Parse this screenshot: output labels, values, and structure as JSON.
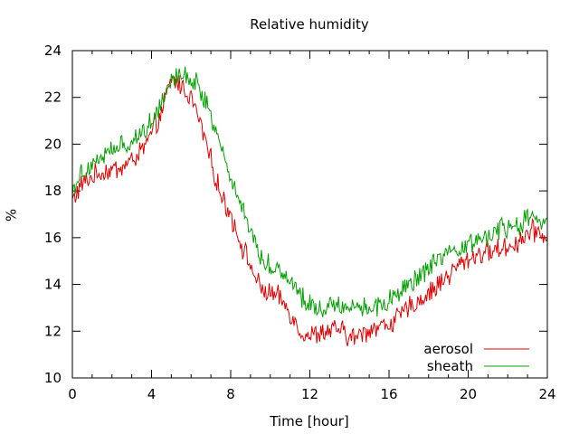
{
  "chart_data": {
    "type": "line",
    "title": "Relative humidity",
    "xlabel": "Time [hour]",
    "ylabel": "%",
    "xlim": [
      0,
      24
    ],
    "ylim": [
      10,
      24
    ],
    "x_ticks": [
      "0",
      "4",
      "8",
      "12",
      "16",
      "20",
      "24"
    ],
    "y_ticks": [
      "10",
      "12",
      "14",
      "16",
      "18",
      "20",
      "22",
      "24"
    ],
    "grid": false,
    "legend_position": "bottom-right",
    "series": [
      {
        "name": "aerosol",
        "color": "#e00000",
        "points": [
          [
            0,
            17.6
          ],
          [
            0.5,
            18.3
          ],
          [
            1,
            18.6
          ],
          [
            1.5,
            18.8
          ],
          [
            2,
            18.9
          ],
          [
            2.5,
            19.0
          ],
          [
            3,
            19.3
          ],
          [
            3.5,
            19.7
          ],
          [
            4,
            20.4
          ],
          [
            4.5,
            21.3
          ],
          [
            5,
            22.8
          ],
          [
            5.5,
            22.5
          ],
          [
            6,
            22.0
          ],
          [
            6.5,
            20.8
          ],
          [
            7,
            19.3
          ],
          [
            7.5,
            17.8
          ],
          [
            8,
            17.0
          ],
          [
            8.5,
            15.8
          ],
          [
            9,
            14.8
          ],
          [
            9.5,
            13.8
          ],
          [
            10,
            13.6
          ],
          [
            10.5,
            13.4
          ],
          [
            11,
            12.8
          ],
          [
            11.5,
            12.0
          ],
          [
            12,
            11.8
          ],
          [
            12.5,
            11.9
          ],
          [
            13,
            12.0
          ],
          [
            13.5,
            12.1
          ],
          [
            14,
            11.7
          ],
          [
            14.5,
            11.8
          ],
          [
            15,
            12.1
          ],
          [
            15.5,
            12.2
          ],
          [
            16,
            12.3
          ],
          [
            16.5,
            12.6
          ],
          [
            17,
            13.0
          ],
          [
            17.5,
            13.3
          ],
          [
            18,
            13.6
          ],
          [
            18.5,
            14.0
          ],
          [
            19,
            14.4
          ],
          [
            19.5,
            14.8
          ],
          [
            20,
            15.1
          ],
          [
            20.5,
            15.3
          ],
          [
            21,
            15.4
          ],
          [
            21.5,
            15.5
          ],
          [
            22,
            15.6
          ],
          [
            22.5,
            15.8
          ],
          [
            23,
            16.2
          ],
          [
            23.5,
            16.3
          ],
          [
            24,
            16.0
          ]
        ]
      },
      {
        "name": "sheath",
        "color": "#00a000",
        "points": [
          [
            0,
            18.1
          ],
          [
            0.5,
            18.8
          ],
          [
            1,
            19.2
          ],
          [
            1.5,
            19.5
          ],
          [
            2,
            19.7
          ],
          [
            2.5,
            19.9
          ],
          [
            3,
            20.1
          ],
          [
            3.5,
            20.5
          ],
          [
            4,
            21.0
          ],
          [
            4.5,
            21.8
          ],
          [
            5,
            22.9
          ],
          [
            5.5,
            23.0
          ],
          [
            6,
            22.8
          ],
          [
            6.5,
            22.3
          ],
          [
            7,
            21.3
          ],
          [
            7.5,
            19.9
          ],
          [
            8,
            18.6
          ],
          [
            8.5,
            17.5
          ],
          [
            9,
            16.3
          ],
          [
            9.5,
            15.2
          ],
          [
            10,
            14.8
          ],
          [
            10.5,
            14.6
          ],
          [
            11,
            14.2
          ],
          [
            11.5,
            13.6
          ],
          [
            12,
            13.1
          ],
          [
            12.5,
            13.0
          ],
          [
            13,
            13.1
          ],
          [
            13.5,
            13.2
          ],
          [
            14,
            13.0
          ],
          [
            14.5,
            13.1
          ],
          [
            15,
            13.0
          ],
          [
            15.5,
            13.1
          ],
          [
            16,
            13.3
          ],
          [
            16.5,
            13.5
          ],
          [
            17,
            14.0
          ],
          [
            17.5,
            14.3
          ],
          [
            18,
            14.7
          ],
          [
            18.5,
            15.0
          ],
          [
            19,
            15.2
          ],
          [
            19.5,
            15.4
          ],
          [
            20,
            15.7
          ],
          [
            20.5,
            15.9
          ],
          [
            21,
            16.1
          ],
          [
            21.5,
            16.3
          ],
          [
            22,
            16.4
          ],
          [
            22.5,
            16.5
          ],
          [
            23,
            16.8
          ],
          [
            23.5,
            16.8
          ],
          [
            24,
            16.6
          ]
        ]
      }
    ]
  }
}
